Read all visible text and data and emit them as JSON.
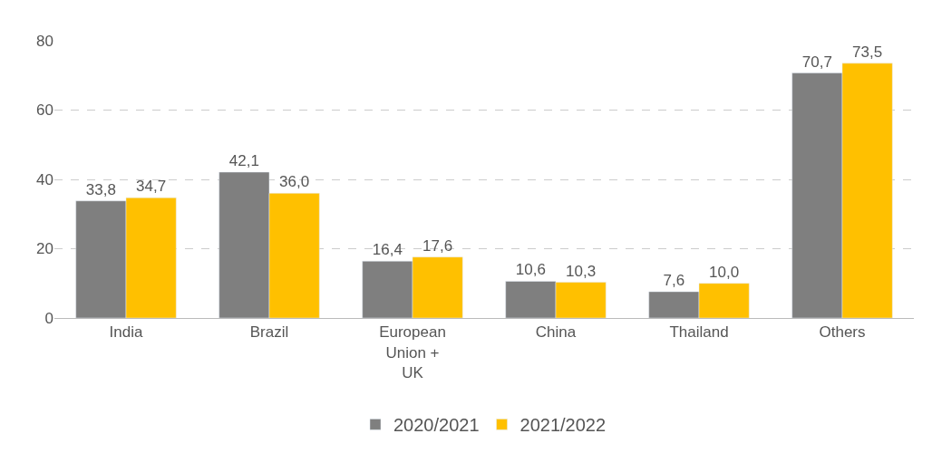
{
  "chart_data": {
    "type": "bar",
    "categories": [
      "India",
      "Brazil",
      "European\nUnion +\nUK",
      "China",
      "Thailand",
      "Others"
    ],
    "series": [
      {
        "name": "2020/2021",
        "color": "#7f7f7f",
        "values": [
          33.8,
          42.1,
          16.4,
          10.6,
          7.6,
          70.7
        ],
        "value_labels": [
          "33,8",
          "42,1",
          "16,4",
          "10,6",
          "7,6",
          "70,7"
        ]
      },
      {
        "name": "2021/2022",
        "color": "#ffc000",
        "values": [
          34.7,
          36.0,
          17.6,
          10.3,
          10.0,
          73.5
        ],
        "value_labels": [
          "34,7",
          "36,0",
          "17,6",
          "10,3",
          "10,0",
          "73,5"
        ]
      }
    ],
    "ylim": [
      0,
      80
    ],
    "yticks": [
      0,
      20,
      40,
      60,
      80
    ],
    "grid": "y",
    "legend": "bottom"
  }
}
